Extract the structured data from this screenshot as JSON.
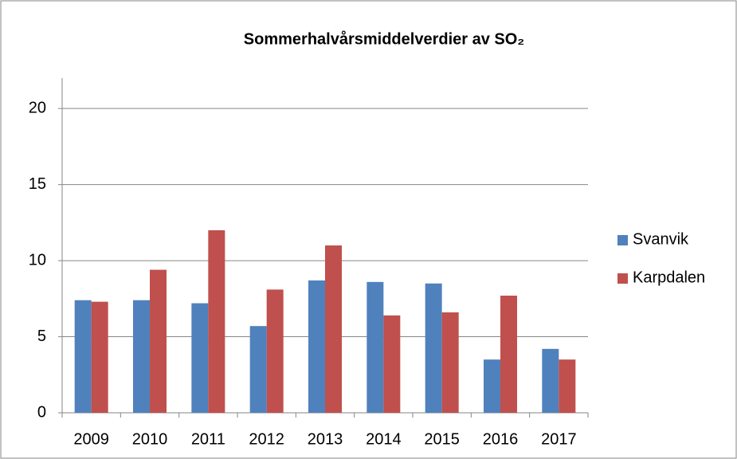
{
  "chart_data": {
    "type": "bar",
    "title": "Sommerhalvårsmiddelverdier av SO₂",
    "categories": [
      "2009",
      "2010",
      "2011",
      "2012",
      "2013",
      "2014",
      "2015",
      "2016",
      "2017"
    ],
    "series": [
      {
        "name": "Svanvik",
        "color": "#4f81bd",
        "values": [
          7.4,
          7.4,
          7.2,
          5.7,
          8.7,
          8.6,
          8.5,
          3.5,
          4.2
        ]
      },
      {
        "name": "Karpdalen",
        "color": "#c0504d",
        "values": [
          7.3,
          9.4,
          12.0,
          8.1,
          11.0,
          6.4,
          6.6,
          7.7,
          3.5
        ]
      }
    ],
    "ylim": [
      0,
      22
    ],
    "yticks": [
      0,
      5,
      10,
      15,
      20
    ],
    "grid": true,
    "legend": "right"
  }
}
